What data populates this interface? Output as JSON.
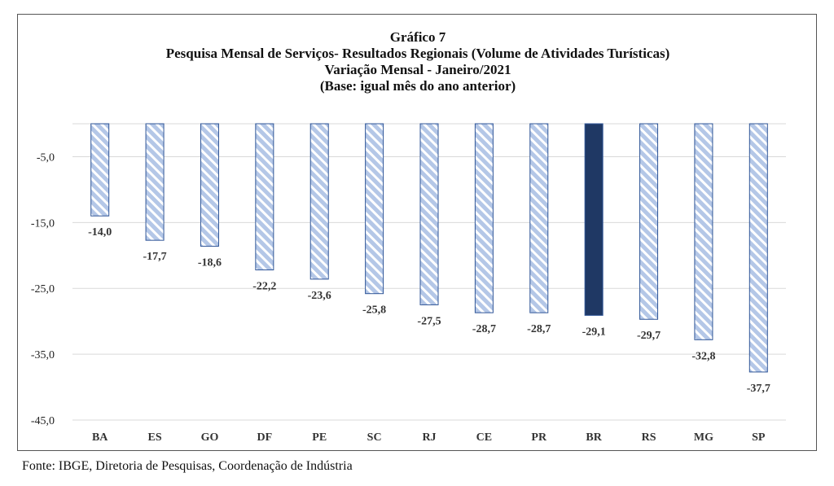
{
  "chart_data": {
    "type": "bar",
    "title_lines": [
      "Gráfico 7",
      "Pesquisa Mensal de Serviços- Resultados Regionais (Volume de Atividades Turísticas)",
      "Variação Mensal - Janeiro/2021",
      "(Base: igual mês do ano anterior)"
    ],
    "categories": [
      "BA",
      "ES",
      "GO",
      "DF",
      "PE",
      "SC",
      "RJ",
      "CE",
      "PR",
      "BR",
      "RS",
      "MG",
      "SP"
    ],
    "values": [
      -14.0,
      -17.7,
      -18.6,
      -22.2,
      -23.6,
      -25.8,
      -27.5,
      -28.7,
      -28.7,
      -29.1,
      -29.7,
      -32.8,
      -37.7
    ],
    "value_labels": [
      "-14,0",
      "-17,7",
      "-18,6",
      "-22,2",
      "-23,6",
      "-25,8",
      "-27,5",
      "-28,7",
      "-28,7",
      "-29,1",
      "-29,7",
      "-32,8",
      "-37,7"
    ],
    "highlight_category": "BR",
    "y_ticks": [
      -5,
      -15,
      -25,
      -35,
      -45
    ],
    "y_tick_labels": [
      "-5,0",
      "-15,0",
      "-25,0",
      "-35,0",
      "-45,0"
    ],
    "ylim": [
      -45,
      0
    ],
    "grid": true,
    "legend": "none",
    "colors": {
      "bar_fill": "#b4c7e7",
      "bar_stripe": "#ffffff",
      "bar_border": "#2f5597",
      "highlight_fill": "#1f3864",
      "gridline": "#d9d9d9"
    }
  },
  "source": "Fonte: IBGE, Diretoria de Pesquisas, Coordenação de Indústria"
}
